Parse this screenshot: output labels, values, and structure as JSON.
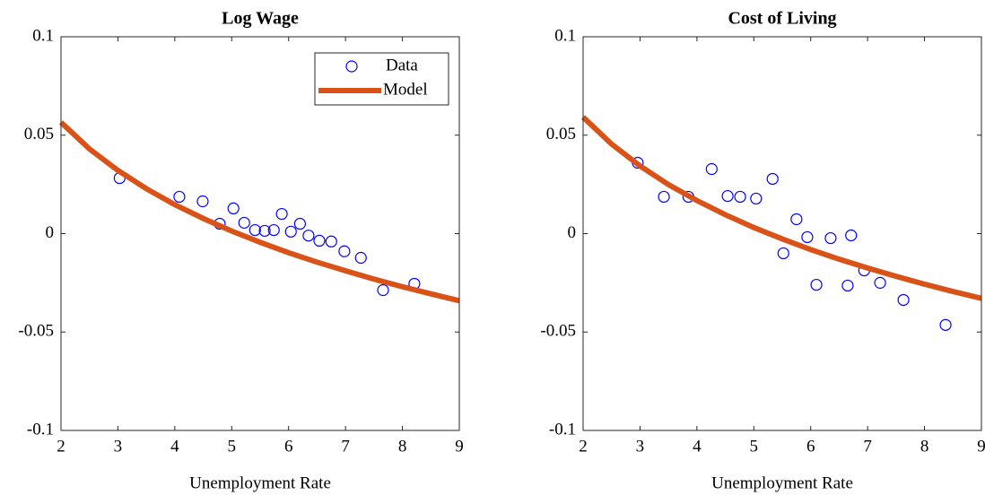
{
  "chart_data": [
    {
      "type": "scatter",
      "title": "Log Wage",
      "xlabel": "Unemployment Rate",
      "xlim": [
        2,
        9
      ],
      "ylim": [
        -0.1,
        0.1
      ],
      "xticks": [
        2,
        3,
        4,
        5,
        6,
        7,
        8,
        9
      ],
      "yticks": [
        -0.1,
        -0.05,
        0,
        0.05,
        0.1
      ],
      "legend": "upper right",
      "series": [
        {
          "name": "Data",
          "type": "scatter",
          "color": "#0000ff",
          "x": [
            3.03,
            4.08,
            4.49,
            4.79,
            5.03,
            5.22,
            5.41,
            5.58,
            5.74,
            5.88,
            6.04,
            6.2,
            6.35,
            6.54,
            6.75,
            6.98,
            7.27,
            7.66,
            8.21
          ],
          "values": [
            0.0282,
            0.0187,
            0.0164,
            0.005,
            0.0128,
            0.0055,
            0.0018,
            0.0014,
            0.0018,
            0.01,
            0.001,
            0.005,
            -0.001,
            -0.0036,
            -0.004,
            -0.009,
            -0.0123,
            -0.0287,
            -0.0255
          ]
        },
        {
          "name": "Model",
          "type": "line",
          "color": "#d95319",
          "x": [
            2,
            2.5,
            3,
            3.5,
            4,
            4.5,
            5,
            5.5,
            6,
            6.5,
            7,
            7.5,
            8,
            8.5,
            9
          ],
          "values": [
            0.0565,
            0.043,
            0.0321,
            0.0228,
            0.0147,
            0.0077,
            0.0013,
            -0.0044,
            -0.0097,
            -0.0145,
            -0.0189,
            -0.0231,
            -0.027,
            -0.0306,
            -0.0341
          ]
        }
      ]
    },
    {
      "type": "scatter",
      "title": "Cost of Living",
      "xlabel": "Unemployment Rate",
      "xlim": [
        2,
        9
      ],
      "ylim": [
        -0.1,
        0.1
      ],
      "xticks": [
        2,
        3,
        4,
        5,
        6,
        7,
        8,
        9
      ],
      "yticks": [
        -0.1,
        -0.05,
        0,
        0.05,
        0.1
      ],
      "series": [
        {
          "type": "scatter",
          "color": "#0000ff",
          "x": [
            2.96,
            3.42,
            3.85,
            4.26,
            4.54,
            4.76,
            5.04,
            5.33,
            5.52,
            5.75,
            5.94,
            6.1,
            6.35,
            6.65,
            6.71,
            6.94,
            7.22,
            7.63,
            8.37
          ],
          "values": [
            0.036,
            0.0187,
            0.0187,
            0.0328,
            0.0191,
            0.0187,
            0.0178,
            0.0278,
            -0.01,
            0.0073,
            -0.0018,
            -0.026,
            -0.0023,
            -0.0264,
            -0.0009,
            -0.0187,
            -0.025,
            -0.0337,
            -0.0464
          ]
        },
        {
          "type": "line",
          "color": "#d95319",
          "x": [
            2,
            2.5,
            3,
            3.5,
            4,
            4.5,
            5,
            5.5,
            6,
            6.5,
            7,
            7.5,
            8,
            8.5,
            9
          ],
          "values": [
            0.0592,
            0.0455,
            0.0344,
            0.0249,
            0.0168,
            0.0096,
            0.0031,
            -0.0027,
            -0.0081,
            -0.013,
            -0.0175,
            -0.0217,
            -0.0257,
            -0.0294,
            -0.0329
          ]
        }
      ]
    }
  ]
}
